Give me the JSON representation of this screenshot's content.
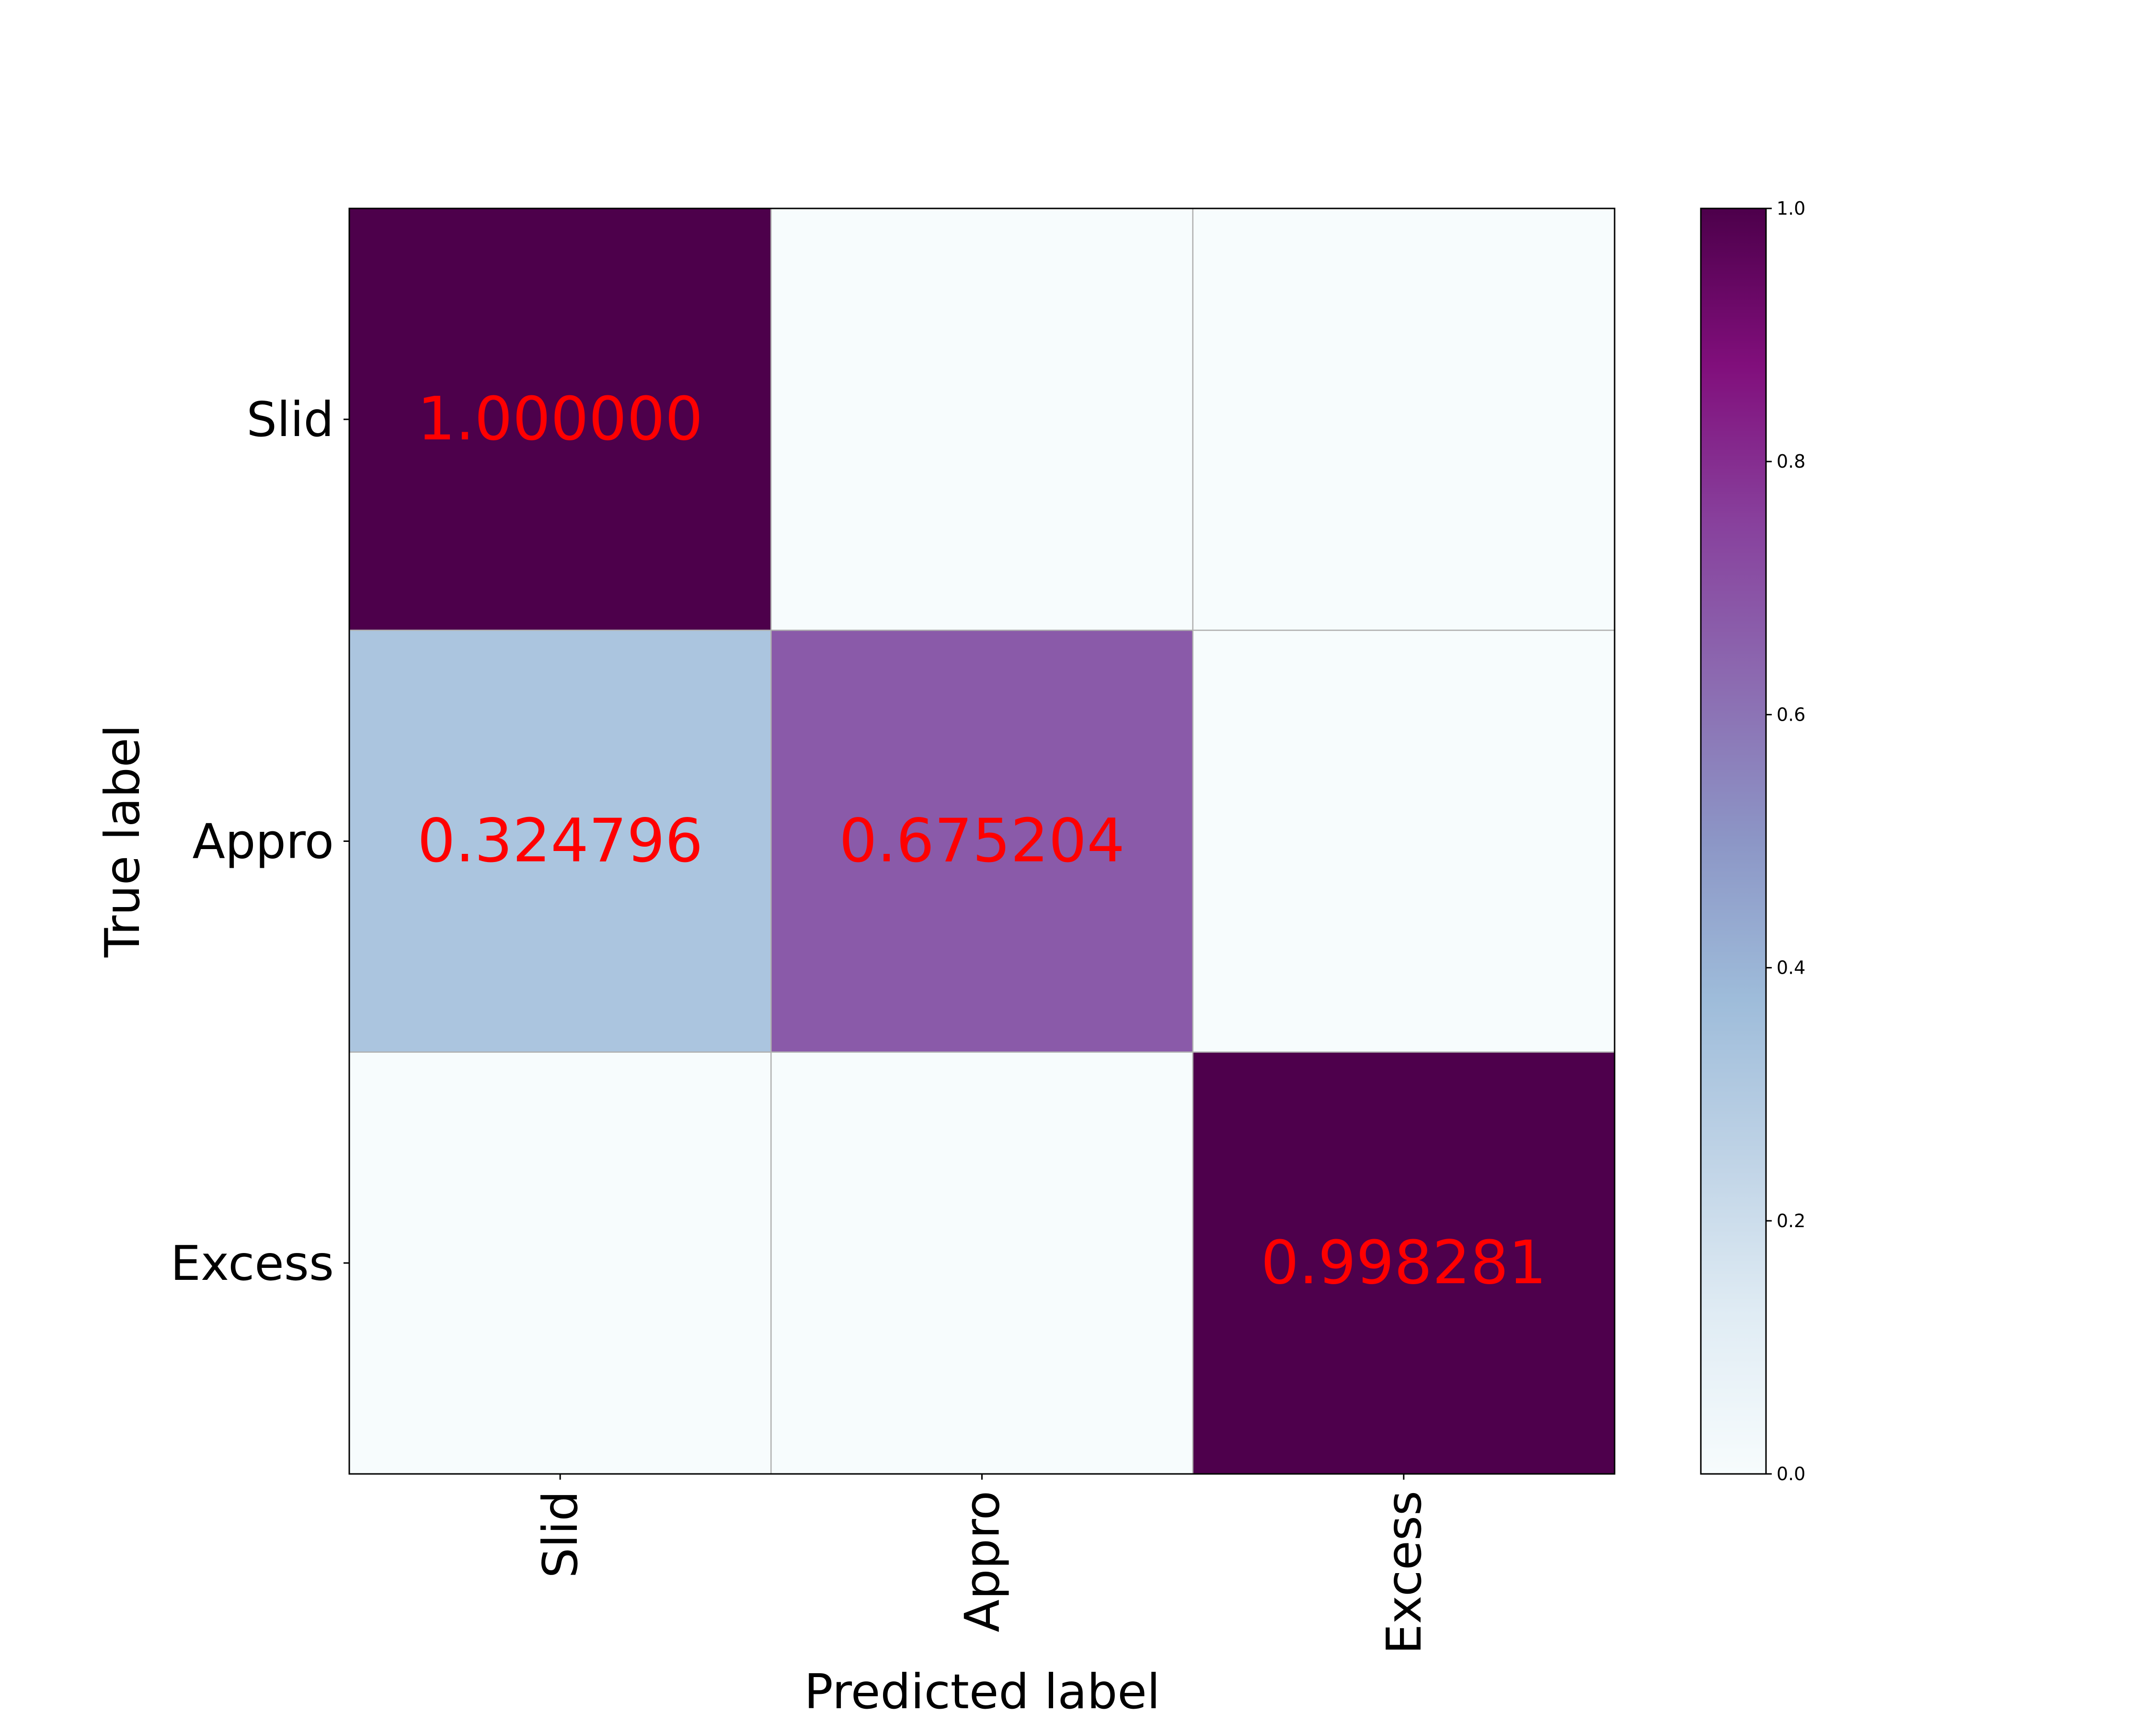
{
  "chart_data": {
    "type": "heatmap",
    "title": "",
    "xlabel": "Predicted label",
    "ylabel": "True label",
    "x_categories": [
      "Slid",
      "Appro",
      "Excess"
    ],
    "y_categories": [
      "Slid",
      "Appro",
      "Excess"
    ],
    "matrix": [
      [
        1.0,
        0.0,
        0.0
      ],
      [
        0.324796,
        0.675204,
        0.0
      ],
      [
        0.0,
        0.0,
        0.998281
      ]
    ],
    "cell_labels": [
      [
        "1.000000",
        "",
        ""
      ],
      [
        "0.324796",
        "0.675204",
        ""
      ],
      [
        "",
        "",
        "0.998281"
      ]
    ],
    "colormap": "BuPu",
    "cell_label_color": "#ff0000",
    "colorbar": {
      "range": [
        0.0,
        1.0
      ],
      "ticks": [
        "0.0",
        "0.2",
        "0.4",
        "0.6",
        "0.8",
        "1.0"
      ]
    },
    "grid": true
  }
}
